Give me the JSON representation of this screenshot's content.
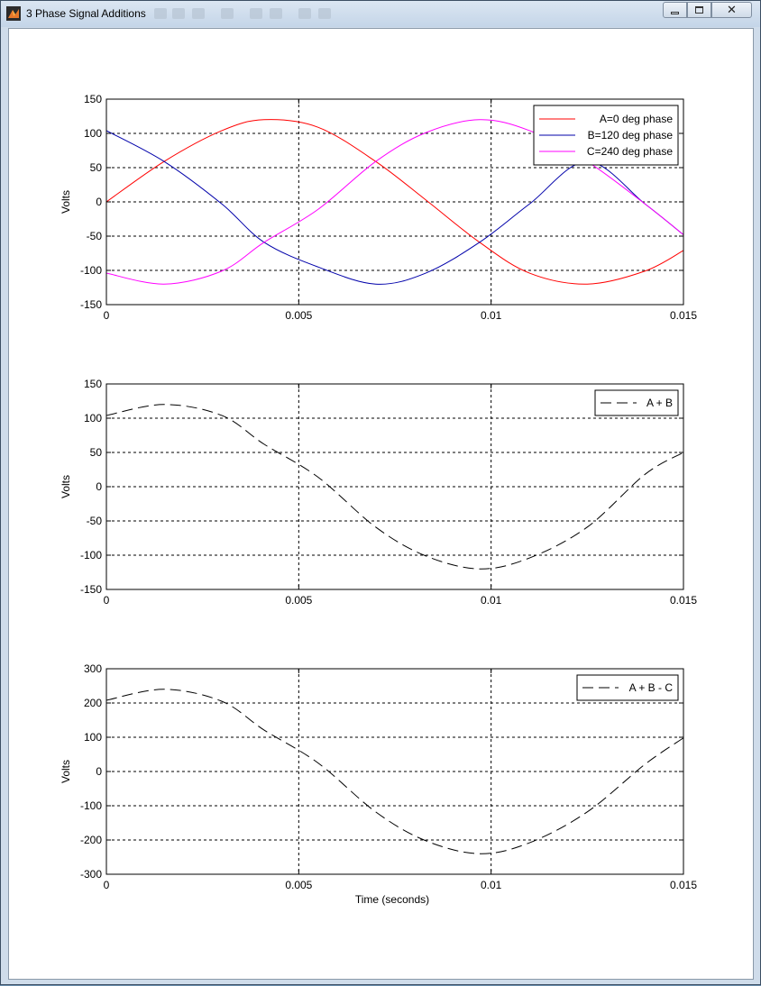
{
  "window": {
    "title": "3 Phase Signal Additions",
    "min_icon": "minimize-icon",
    "max_icon": "maximize-icon",
    "close_icon": "close-icon",
    "app_icon": "matlab-icon"
  },
  "chart_data": [
    {
      "type": "line",
      "title": "",
      "xlabel": "",
      "ylabel": "Volts",
      "xlim": [
        0,
        0.015
      ],
      "ylim": [
        -150,
        150
      ],
      "xticks": [
        0,
        0.005,
        0.01,
        0.015
      ],
      "xtick_labels": [
        "0",
        "0.005",
        "0.01",
        "0.015"
      ],
      "yticks": [
        150,
        100,
        50,
        0,
        -50,
        -100,
        -150
      ],
      "ytick_labels": [
        "150",
        "100",
        "50",
        "0",
        "-50",
        "-100",
        "-150"
      ],
      "grid": true,
      "legend_position": "top-right",
      "x": [
        0,
        0.0015,
        0.003,
        0.0041,
        0.0055,
        0.007,
        0.0083,
        0.0097,
        0.011,
        0.0125,
        0.014,
        0.015
      ],
      "series": [
        {
          "name": "A=0 deg phase",
          "color": "#ff0000",
          "dash": "solid",
          "y": [
            0,
            59,
            104,
            120,
            109,
            59,
            3,
            -59,
            -104,
            -120,
            -101,
            -71
          ]
        },
        {
          "name": "B=120 deg phase",
          "color": "#0000aa",
          "dash": "solid",
          "y": [
            104,
            59,
            -3,
            -59,
            -95,
            -120,
            -104,
            -59,
            -3,
            59,
            -3,
            -48
          ]
        },
        {
          "name": "C=240 deg phase",
          "color": "#ff00ff",
          "dash": "solid",
          "y": [
            -104,
            -120,
            -101,
            -59,
            -11,
            59,
            101,
            120,
            104,
            59,
            -3,
            -48
          ]
        }
      ]
    },
    {
      "type": "line",
      "title": "",
      "xlabel": "",
      "ylabel": "Volts",
      "xlim": [
        0,
        0.015
      ],
      "ylim": [
        -150,
        150
      ],
      "xticks": [
        0,
        0.005,
        0.01,
        0.015
      ],
      "xtick_labels": [
        "0",
        "0.005",
        "0.01",
        "0.015"
      ],
      "yticks": [
        150,
        100,
        50,
        0,
        -50,
        -100,
        -150
      ],
      "ytick_labels": [
        "150",
        "100",
        "50",
        "0",
        "-50",
        "-100",
        "-150"
      ],
      "grid": true,
      "legend_position": "top-right",
      "x": [
        0,
        0.0015,
        0.003,
        0.0041,
        0.0055,
        0.007,
        0.0083,
        0.0097,
        0.011,
        0.0125,
        0.014,
        0.015
      ],
      "series": [
        {
          "name": "A + B",
          "color": "#000000",
          "dash": "dashed",
          "y": [
            104,
            120,
            104,
            62,
            14,
            -59,
            -101,
            -120,
            -104,
            -59,
            18,
            50
          ]
        }
      ]
    },
    {
      "type": "line",
      "title": "",
      "xlabel": "Time (seconds)",
      "ylabel": "Volts",
      "xlim": [
        0,
        0.015
      ],
      "ylim": [
        -300,
        300
      ],
      "xticks": [
        0,
        0.005,
        0.01,
        0.015
      ],
      "xtick_labels": [
        "0",
        "0.005",
        "0.01",
        "0.015"
      ],
      "yticks": [
        300,
        200,
        100,
        0,
        -100,
        -200,
        -300
      ],
      "ytick_labels": [
        "300",
        "200",
        "100",
        "0",
        "-100",
        "-200",
        "-300"
      ],
      "grid": true,
      "legend_position": "top-right",
      "x": [
        0,
        0.0015,
        0.003,
        0.0041,
        0.0055,
        0.007,
        0.0083,
        0.0097,
        0.011,
        0.0125,
        0.014,
        0.015
      ],
      "series": [
        {
          "name": "A + B - C",
          "color": "#000000",
          "dash": "dashed",
          "y": [
            208,
            240,
            205,
            121,
            25,
            -118,
            -202,
            -240,
            -208,
            -118,
            21,
            98
          ]
        }
      ]
    }
  ]
}
